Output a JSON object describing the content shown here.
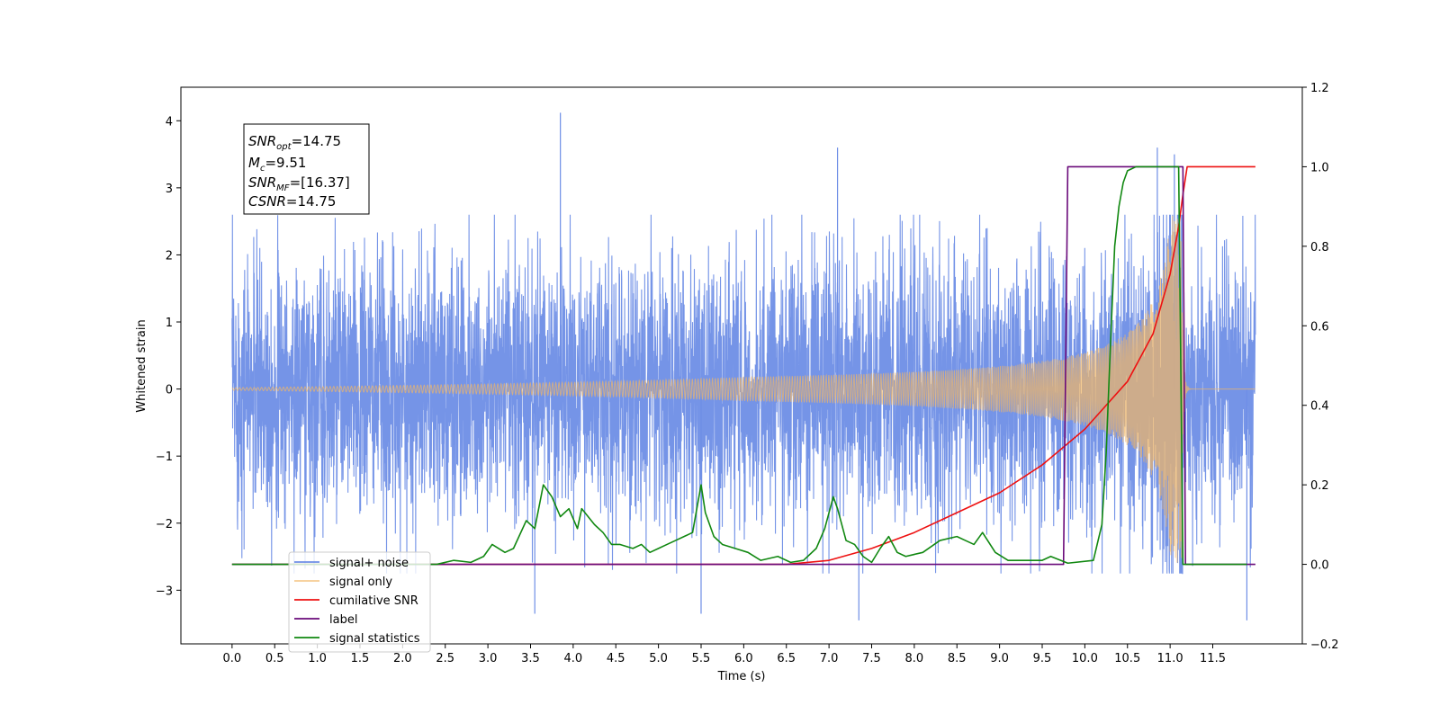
{
  "chart_data": {
    "type": "line",
    "xlabel": "Time (s)",
    "ylabel": "Whitened strain",
    "xlim": [
      -0.6,
      12.55
    ],
    "ylim": [
      -3.8,
      4.5
    ],
    "y2lim": [
      -0.2,
      1.2
    ],
    "x_ticks": [
      "0.0",
      "0.5",
      "1.0",
      "1.5",
      "2.0",
      "2.5",
      "3.0",
      "3.5",
      "4.0",
      "4.5",
      "5.0",
      "5.5",
      "6.0",
      "6.5",
      "7.0",
      "7.5",
      "8.0",
      "8.5",
      "9.0",
      "9.5",
      "10.0",
      "10.5",
      "11.0",
      "11.5"
    ],
    "y_ticks": [
      "4",
      "3",
      "2",
      "1",
      "0",
      "−1",
      "−2",
      "−3"
    ],
    "y2_ticks": [
      "1.2",
      "1.0",
      "0.8",
      "0.6",
      "0.4",
      "0.2",
      "0.0",
      "−0.2"
    ],
    "grid": false,
    "legend_position": "lower-left",
    "annotation": {
      "snr_opt": {
        "sym": "SNR",
        "sub": "opt",
        "val": "=14.75"
      },
      "mc": {
        "sym": "M",
        "sub": "c",
        "val": "=9.51"
      },
      "snr_mf": {
        "sym": "SNR",
        "sub": "MF",
        "val": "=[16.37]"
      },
      "csnr": {
        "sym": "CSNR",
        "sub": "",
        "val": "=14.75"
      }
    },
    "series": [
      {
        "name": "signal+ noise",
        "color": "#6e8ee6",
        "axis": "left",
        "kind": "noise",
        "t_start": 0.0,
        "t_end": 12.0,
        "envelope": [
          2.5,
          -2.7
        ],
        "peaks": [
          [
            3.85,
            4.12
          ],
          [
            7.1,
            3.6
          ],
          [
            10.85,
            3.6
          ],
          [
            11.05,
            3.5
          ],
          [
            3.55,
            -3.35
          ],
          [
            5.5,
            -3.35
          ],
          [
            7.35,
            -3.45
          ],
          [
            11.9,
            -3.45
          ]
        ]
      },
      {
        "name": "signal only",
        "color": "#f2b764",
        "axis": "left",
        "kind": "chirp",
        "t_start": 0.0,
        "t_merger": 11.15,
        "t_end": 12.0,
        "peak_amplitude": 2.6
      },
      {
        "name": "cumilative SNR",
        "color": "#ee1111",
        "axis": "right",
        "x": [
          0,
          6.5,
          7.0,
          7.5,
          8.0,
          8.5,
          9.0,
          9.5,
          10.0,
          10.5,
          10.8,
          11.0,
          11.1,
          11.15,
          11.2,
          12.0
        ],
        "values": [
          0,
          0,
          0.01,
          0.04,
          0.08,
          0.13,
          0.18,
          0.25,
          0.34,
          0.46,
          0.58,
          0.73,
          0.85,
          0.93,
          1.0,
          1.0
        ]
      },
      {
        "name": "label",
        "color": "#6a0a7a",
        "axis": "right",
        "x": [
          0,
          9.75,
          9.8,
          11.15,
          11.18,
          12.0
        ],
        "values": [
          0,
          0,
          1,
          1,
          0,
          0
        ]
      },
      {
        "name": "signal statistics",
        "color": "#118811",
        "axis": "right",
        "x": [
          0,
          2.4,
          2.6,
          2.8,
          2.95,
          3.05,
          3.2,
          3.3,
          3.45,
          3.55,
          3.65,
          3.75,
          3.85,
          3.95,
          4.05,
          4.1,
          4.25,
          4.35,
          4.45,
          4.55,
          4.7,
          4.8,
          4.9,
          5.0,
          5.1,
          5.2,
          5.3,
          5.4,
          5.5,
          5.55,
          5.65,
          5.75,
          5.9,
          6.05,
          6.2,
          6.4,
          6.55,
          6.7,
          6.85,
          6.95,
          7.05,
          7.1,
          7.2,
          7.3,
          7.4,
          7.5,
          7.6,
          7.7,
          7.8,
          7.9,
          8.1,
          8.3,
          8.5,
          8.6,
          8.7,
          8.8,
          8.95,
          9.1,
          9.3,
          9.5,
          9.6,
          9.8,
          10.1,
          10.2,
          10.25,
          10.3,
          10.35,
          10.4,
          10.45,
          10.5,
          10.6,
          11.1,
          11.15,
          11.2,
          11.9
        ],
        "values": [
          0,
          0,
          0.01,
          0.005,
          0.02,
          0.05,
          0.03,
          0.04,
          0.11,
          0.09,
          0.2,
          0.17,
          0.12,
          0.14,
          0.09,
          0.14,
          0.1,
          0.08,
          0.05,
          0.05,
          0.04,
          0.05,
          0.03,
          0.04,
          0.05,
          0.06,
          0.07,
          0.08,
          0.2,
          0.13,
          0.07,
          0.05,
          0.04,
          0.03,
          0.01,
          0.02,
          0.005,
          0.01,
          0.04,
          0.09,
          0.17,
          0.14,
          0.06,
          0.05,
          0.02,
          0.005,
          0.04,
          0.07,
          0.03,
          0.02,
          0.03,
          0.06,
          0.07,
          0.06,
          0.05,
          0.08,
          0.03,
          0.01,
          0.01,
          0.01,
          0.02,
          0.003,
          0.01,
          0.1,
          0.28,
          0.55,
          0.8,
          0.9,
          0.96,
          0.99,
          1.0,
          1.0,
          0.0,
          0.0,
          0.0
        ]
      }
    ]
  }
}
